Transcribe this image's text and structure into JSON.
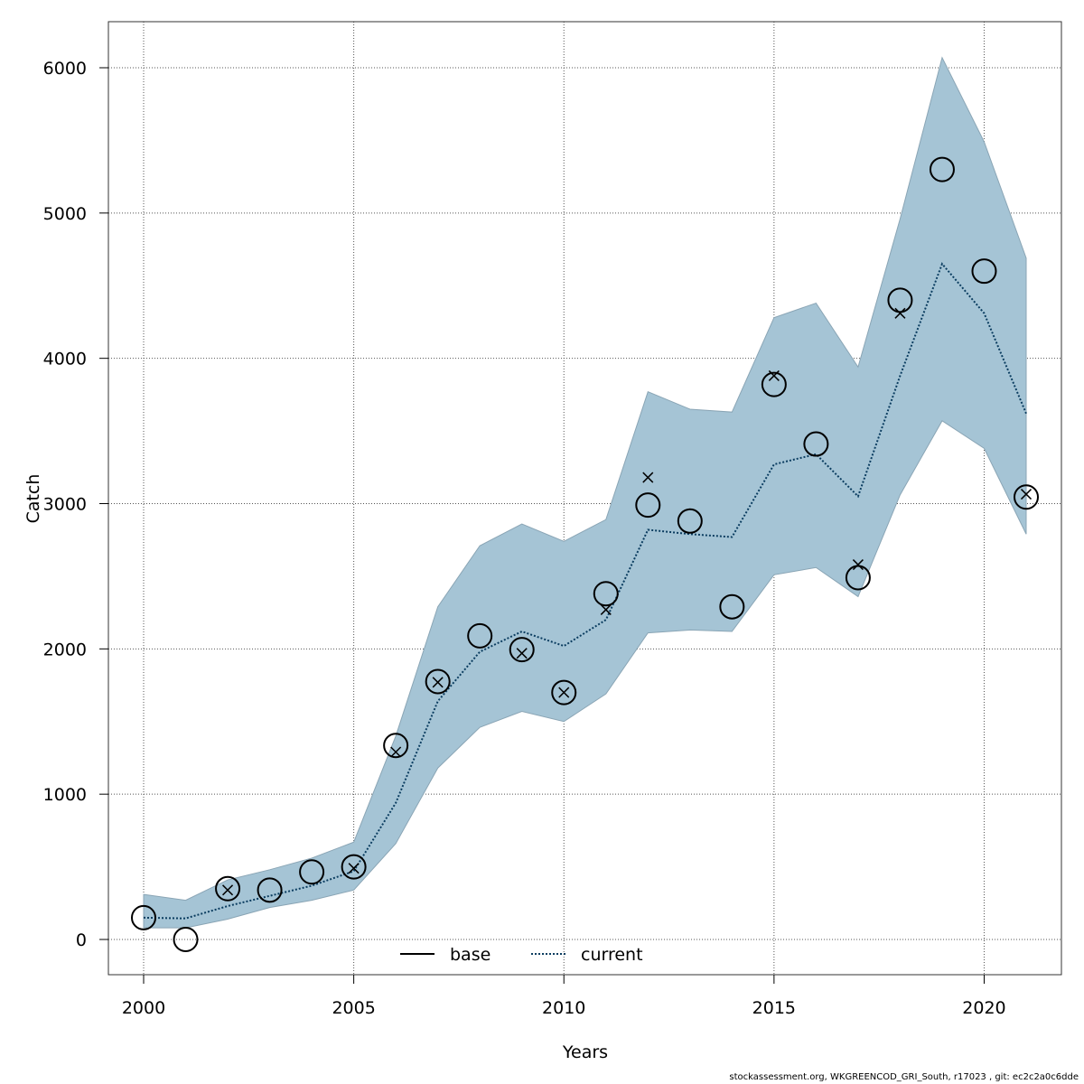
{
  "chart_data": {
    "type": "line",
    "xlabel": "Years",
    "ylabel": "Catch",
    "xlim": [
      2000,
      2021
    ],
    "ylim": [
      0,
      6000
    ],
    "x_ticks": [
      2000,
      2005,
      2010,
      2015,
      2020
    ],
    "y_ticks": [
      0,
      1000,
      2000,
      3000,
      4000,
      5000,
      6000
    ],
    "x_tick_labels": [
      "2000",
      "2005",
      "2010",
      "2015",
      "2020"
    ],
    "y_tick_labels": [
      "0",
      "1000",
      "2000",
      "3000",
      "4000",
      "5000",
      "6000"
    ],
    "grid": true,
    "legend_position": "bottom-center",
    "colors": {
      "band": "#a5c4d5",
      "band_edge": "#8aa5b5",
      "current_line": "#0b3d60"
    },
    "years": [
      2000,
      2001,
      2002,
      2003,
      2004,
      2005,
      2006,
      2007,
      2008,
      2009,
      2010,
      2011,
      2012,
      2013,
      2014,
      2015,
      2016,
      2017,
      2018,
      2019,
      2020,
      2021
    ],
    "series": [
      {
        "name": "base",
        "style": "solid",
        "values": [
          150,
          145,
          230,
          300,
          370,
          470,
          940,
          1640,
          1980,
          2120,
          2020,
          2200,
          2820,
          2790,
          2770,
          3270,
          3340,
          3050,
          3880,
          4650,
          4310,
          3620
        ]
      },
      {
        "name": "current",
        "style": "dotted",
        "values": [
          150,
          145,
          230,
          300,
          370,
          470,
          940,
          1640,
          1980,
          2120,
          2020,
          2200,
          2820,
          2790,
          2770,
          3270,
          3340,
          3050,
          3880,
          4650,
          4310,
          3620
        ]
      }
    ],
    "confidence_band": {
      "lower": [
        80,
        80,
        140,
        220,
        270,
        340,
        660,
        1180,
        1460,
        1570,
        1500,
        1690,
        2110,
        2130,
        2120,
        2510,
        2560,
        2360,
        3060,
        3570,
        3380,
        2790
      ],
      "upper": [
        310,
        270,
        410,
        480,
        560,
        670,
        1400,
        2290,
        2710,
        2860,
        2740,
        2890,
        3770,
        3650,
        3630,
        4280,
        4380,
        3940,
        4960,
        6070,
        5490,
        4690
      ]
    },
    "observed_circles": [
      150,
      0,
      350,
      340,
      465,
      500,
      1335,
      1775,
      2090,
      1995,
      1700,
      2380,
      2990,
      2880,
      2290,
      3820,
      3410,
      2490,
      4400,
      5300,
      4600,
      3045
    ],
    "predicted_crosses": [
      {
        "year": 2002,
        "value": 340
      },
      {
        "year": 2005,
        "value": 490
      },
      {
        "year": 2006,
        "value": 1290
      },
      {
        "year": 2007,
        "value": 1770
      },
      {
        "year": 2009,
        "value": 1970
      },
      {
        "year": 2010,
        "value": 1700
      },
      {
        "year": 2011,
        "value": 2270
      },
      {
        "year": 2012,
        "value": 3180
      },
      {
        "year": 2015,
        "value": 3880
      },
      {
        "year": 2017,
        "value": 2580
      },
      {
        "year": 2018,
        "value": 4310
      },
      {
        "year": 2021,
        "value": 3065
      }
    ]
  },
  "footer_text": "stockassessment.org, WKGREENCOD_GRI_South, r17023 , git: ec2c2a0c6dde"
}
